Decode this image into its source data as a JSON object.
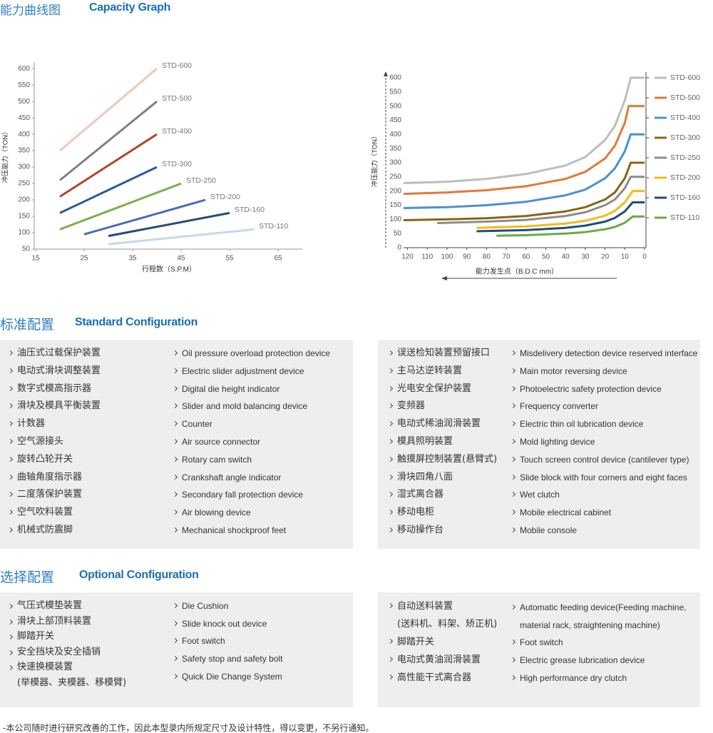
{
  "header": {
    "title_cn": "能力曲线图",
    "title_en": "Capacity Graph"
  },
  "chart_data": [
    {
      "type": "line",
      "x_label": "行程数（S.P.M）",
      "y_label": "冲压能力（TON）",
      "xlim": [
        15,
        70
      ],
      "xticks": [
        15,
        25,
        35,
        45,
        55,
        65
      ],
      "ylim": [
        50,
        620
      ],
      "yticks": [
        50,
        100,
        150,
        200,
        250,
        300,
        350,
        400,
        450,
        500,
        550,
        600
      ],
      "series": [
        {
          "name": "STD-600",
          "color": "#f2c6ba",
          "x": [
            20,
            40
          ],
          "values": [
            350,
            600
          ]
        },
        {
          "name": "STD-500",
          "color": "#7f7f7f",
          "x": [
            20,
            40
          ],
          "values": [
            260,
            500
          ]
        },
        {
          "name": "STD-400",
          "color": "#b0442a",
          "x": [
            20,
            40
          ],
          "values": [
            210,
            400
          ]
        },
        {
          "name": "STD-300",
          "color": "#2b5c9c",
          "x": [
            20,
            40
          ],
          "values": [
            160,
            300
          ]
        },
        {
          "name": "STD-250",
          "color": "#7bb04a",
          "x": [
            20,
            45
          ],
          "values": [
            110,
            250
          ]
        },
        {
          "name": "STD-200",
          "color": "#4a6bb5",
          "x": [
            25,
            50
          ],
          "values": [
            95,
            200
          ]
        },
        {
          "name": "STD-160",
          "color": "#234d7b",
          "x": [
            30,
            55
          ],
          "values": [
            90,
            160
          ]
        },
        {
          "name": "STD-110",
          "color": "#c6d8ec",
          "x": [
            30,
            60
          ],
          "values": [
            65,
            110
          ]
        }
      ]
    },
    {
      "type": "line",
      "x_label": "能力发生点（B.D.C mm）",
      "y_label": "冲压能力（TON）",
      "xlim": [
        122,
        0
      ],
      "xticks": [
        120,
        110,
        100,
        90,
        80,
        70,
        60,
        50,
        40,
        30,
        20,
        10,
        0
      ],
      "ylim": [
        0,
        620
      ],
      "yticks": [
        0,
        50,
        100,
        150,
        200,
        250,
        300,
        350,
        400,
        450,
        500,
        550,
        600
      ],
      "legend": "right",
      "series": [
        {
          "name": "STD-600",
          "color": "#bdbdbd",
          "x": [
            122,
            100,
            80,
            60,
            40,
            30,
            20,
            15,
            10,
            7,
            0
          ],
          "values": [
            228,
            233,
            243,
            260,
            290,
            320,
            380,
            430,
            520,
            600,
            600
          ]
        },
        {
          "name": "STD-500",
          "color": "#e07a3a",
          "x": [
            122,
            100,
            80,
            60,
            40,
            30,
            20,
            15,
            10,
            8,
            0
          ],
          "values": [
            190,
            195,
            203,
            217,
            243,
            268,
            315,
            360,
            440,
            500,
            500
          ]
        },
        {
          "name": "STD-400",
          "color": "#4a90d0",
          "x": [
            122,
            100,
            80,
            60,
            40,
            30,
            20,
            15,
            10,
            7,
            0
          ],
          "values": [
            140,
            143,
            150,
            162,
            185,
            205,
            245,
            280,
            340,
            400,
            400
          ]
        },
        {
          "name": "STD-300",
          "color": "#8a6414",
          "x": [
            122,
            100,
            80,
            60,
            40,
            30,
            20,
            15,
            10,
            7,
            0
          ],
          "values": [
            97,
            100,
            104,
            112,
            128,
            143,
            170,
            195,
            245,
            300,
            300
          ]
        },
        {
          "name": "STD-250",
          "color": "#8c8c8c",
          "x": [
            105,
            80,
            60,
            40,
            30,
            20,
            15,
            10,
            7,
            0
          ],
          "values": [
            87,
            92,
            98,
            112,
            125,
            150,
            170,
            210,
            250,
            250
          ]
        },
        {
          "name": "STD-200",
          "color": "#f5b91a",
          "x": [
            85,
            60,
            40,
            30,
            20,
            15,
            10,
            6,
            0
          ],
          "values": [
            70,
            75,
            85,
            95,
            113,
            130,
            160,
            200,
            200
          ]
        },
        {
          "name": "STD-160",
          "color": "#1f4e79",
          "x": [
            85,
            60,
            40,
            30,
            20,
            15,
            10,
            6,
            0
          ],
          "values": [
            58,
            62,
            70,
            78,
            92,
            105,
            128,
            160,
            160
          ]
        },
        {
          "name": "STD-110",
          "color": "#6aaa44",
          "x": [
            75,
            60,
            40,
            30,
            20,
            15,
            10,
            6,
            0
          ],
          "values": [
            42,
            44,
            50,
            55,
            65,
            73,
            88,
            110,
            110
          ]
        }
      ]
    }
  ],
  "standard": {
    "title_cn": "标准配置",
    "title_en": "Standard Configuration",
    "panels": [
      {
        "cn": [
          "油压式过载保护装置",
          "电动式滑块调整装置",
          "数字式模高指示器",
          "滑块及模具平衡装置",
          "计数器",
          "空气源接头",
          "旋转凸轮开关",
          "曲轴角度指示器",
          "二度落保护装置",
          "空气吹料装置",
          "机械式防震脚"
        ],
        "en": [
          "Oil pressure overload protection device",
          "Electric slider adjustment device",
          "Digital die height indicator",
          "Slider and mold balancing device",
          "Counter",
          "Air source connector",
          "Rotary cam switch",
          "Crankshaft angle indicator",
          "Secondary fall protection device",
          "Air blowing device",
          "Mechanical shockproof feet"
        ]
      },
      {
        "cn": [
          "误送检知装置预留接口",
          "主马达逆转装置",
          "光电安全保护装置",
          "变频器",
          "电动式稀油润滑装置",
          "模具照明装置",
          "触摸屏控制装置(悬臂式)",
          "滑块四角八面",
          "湿式离合器",
          "移动电柜",
          "移动操作台"
        ],
        "en": [
          "Misdelivery detection device reserved interface",
          "Main motor reversing device",
          "Photoelectric safety protection device",
          "Frequency converter",
          "Electric thin oil lubrication device",
          "Mold lighting device",
          "Touch screen control device (cantilever type)",
          "Slide block with four corners and eight faces",
          "Wet clutch",
          "Mobile electrical cabinet",
          "Mobile console"
        ]
      }
    ]
  },
  "optional": {
    "title_cn": "选择配置",
    "title_en": "Optional Configuration",
    "panels": [
      {
        "cn": [
          "气压式模垫装置",
          "滑块上部顶料装置",
          "脚踏开关",
          "安全挡块及安全插销",
          "快速换模装置\n(举模器、夹模器、移模臂)"
        ],
        "en": [
          "Die Cushion",
          "Slide knock out device",
          "Foot switch",
          "Safety stop and safety bolt",
          "Quick Die Change System"
        ]
      },
      {
        "cn": [
          "自动送料装置\n(送料机、料架、矫正机)",
          "脚踏开关",
          "电动式黄油润滑装置",
          "高性能干式离合器"
        ],
        "en": [
          "Automatic feeding device(Feeding machine,\nmaterial rack, straightening machine)",
          "Foot switch",
          "Electric grease lubrication device",
          "High performance dry clutch"
        ]
      }
    ]
  },
  "footnote": "-本公司随时进行研究改善的工作，因此本型录内所规定尺寸及设计特性，得以变更，不另行通知。"
}
